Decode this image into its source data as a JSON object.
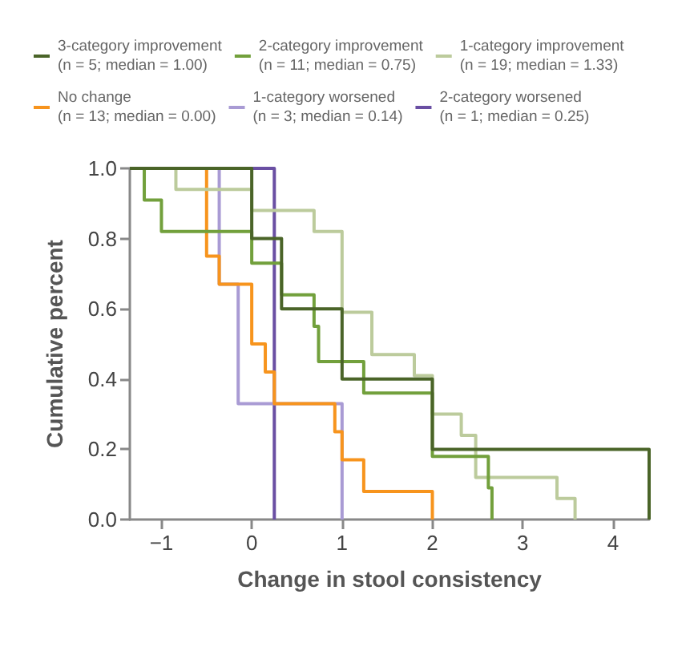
{
  "chart_data": {
    "type": "step",
    "xlabel": "Change in stool consistency",
    "ylabel": "Cumulative percent",
    "xlim": [
      -1.35,
      4.4
    ],
    "ylim": [
      0,
      1
    ],
    "xticks": [
      {
        "value": -1,
        "label": "−1"
      },
      0,
      1,
      2,
      3,
      4
    ],
    "yticks": [
      {
        "value": 0,
        "label": "0.0"
      },
      {
        "value": 0.2,
        "label": "0.2"
      },
      {
        "value": 0.4,
        "label": "0.4"
      },
      {
        "value": 0.6,
        "label": "0.6"
      },
      {
        "value": 0.8,
        "label": "0.8"
      },
      {
        "value": 1,
        "label": "1.0"
      }
    ],
    "grid": false,
    "legend": "top",
    "marker": "none",
    "line_style": "solid",
    "series": [
      {
        "name": "3-category improvement\n(n = 5; median = 1.00)",
        "color": "#4a6428",
        "x": [
          -1.35,
          0,
          0.33,
          1,
          2,
          4.4
        ],
        "values": [
          1,
          0.8,
          0.6,
          0.4,
          0.2,
          0
        ]
      },
      {
        "name": "2-category improvement\n(n = 11; median = 0.75)",
        "color": "#72a03c",
        "x": [
          -1.35,
          -1.19,
          -1,
          0,
          0.33,
          0.69,
          0.74,
          1.24,
          2,
          2.62,
          2.66
        ],
        "values": [
          1,
          0.91,
          0.82,
          0.73,
          0.64,
          0.55,
          0.45,
          0.36,
          0.18,
          0.09,
          0
        ]
      },
      {
        "name": "1-category improvement\n(n = 19; median = 1.33)",
        "color": "#bccb9c",
        "x": [
          -1.35,
          -0.84,
          0,
          0.69,
          1,
          1.33,
          1.8,
          2,
          2.32,
          2.48,
          3.38,
          3.58
        ],
        "values": [
          1,
          0.94,
          0.88,
          0.82,
          0.59,
          0.47,
          0.41,
          0.3,
          0.24,
          0.12,
          0.06,
          0
        ]
      },
      {
        "name": "No change\n(n = 13; median = 0.00)",
        "color": "#f7941d",
        "x": [
          -1.35,
          -0.5,
          -0.36,
          0,
          0.15,
          0.25,
          0.92,
          1,
          1.24,
          2
        ],
        "values": [
          1,
          0.75,
          0.67,
          0.5,
          0.42,
          0.33,
          0.25,
          0.17,
          0.08,
          0
        ]
      },
      {
        "name": "1-category worsened\n(n = 3; median = 0.14)",
        "color": "#a99bd4",
        "x": [
          -1.35,
          -0.36,
          -0.15,
          1
        ],
        "values": [
          1,
          0.67,
          0.33,
          0
        ]
      },
      {
        "name": "2-category worsened\n(n = 1; median = 0.25)",
        "color": "#6a4fa3",
        "x": [
          -1.35,
          0.25
        ],
        "values": [
          1,
          0
        ]
      }
    ]
  }
}
